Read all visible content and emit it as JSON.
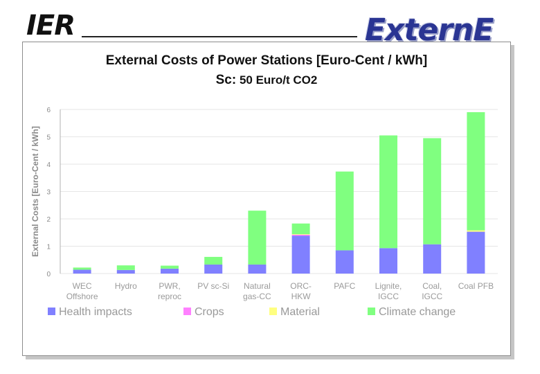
{
  "header": {
    "ier_logo": "IER",
    "externe_logo": "ExternE"
  },
  "slide": {
    "title": "External Costs of Power Stations [Euro-Cent / kWh]",
    "subtitle_prefix": "Sc:",
    "subtitle": "50 Euro/t CO2"
  },
  "chart_data": {
    "type": "bar",
    "stacked": true,
    "ylabel": "External Costs [Euro-Cent / kWh]",
    "ylim": [
      0,
      6
    ],
    "yticks": [
      0,
      1,
      2,
      3,
      4,
      5,
      6
    ],
    "grid": true,
    "legend_position": "bottom",
    "categories": [
      [
        "WEC",
        "Offshore"
      ],
      [
        "Hydro"
      ],
      [
        "PWR,",
        "reproc"
      ],
      [
        "PV sc-Si"
      ],
      [
        "Natural",
        "gas-CC"
      ],
      [
        "ORC-",
        "HKW"
      ],
      [
        "PAFC"
      ],
      [
        "Lignite,",
        "IGCC"
      ],
      [
        "Coal,",
        "IGCC"
      ],
      [
        "Coal PFB"
      ]
    ],
    "series": [
      {
        "name": "Health impacts",
        "color": "#8080ff",
        "values": [
          0.14,
          0.13,
          0.18,
          0.33,
          0.33,
          1.38,
          0.85,
          0.93,
          1.07,
          1.53
        ]
      },
      {
        "name": "Crops",
        "color": "#ff80ff",
        "values": [
          0.0,
          0.0,
          0.0,
          0.0,
          0.0,
          0.04,
          0.0,
          0.0,
          0.0,
          0.0
        ]
      },
      {
        "name": "Material",
        "color": "#ffff80",
        "values": [
          0.0,
          0.0,
          0.0,
          0.0,
          0.0,
          0.02,
          0.0,
          0.0,
          0.0,
          0.05
        ]
      },
      {
        "name": "Climate change",
        "color": "#80ff80",
        "values": [
          0.08,
          0.17,
          0.11,
          0.28,
          1.97,
          0.39,
          2.88,
          4.12,
          3.88,
          4.32
        ]
      }
    ],
    "colors": {
      "grid": "#e6e6e6",
      "axis": "#b0b0b0"
    }
  }
}
